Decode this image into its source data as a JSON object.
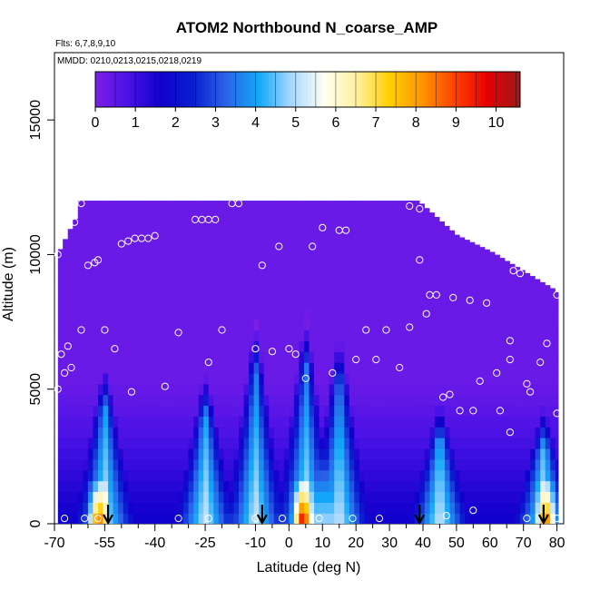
{
  "chart_data": {
    "type": "heatmap",
    "title": "ATOM2 Northbound N_coarse_AMP",
    "subtitle_flights": "Flts: 6,7,8,9,10",
    "subtitle_dates": "MMDD: 0210,0213,0215,0218,0219",
    "xlabel": "Latitude (deg N)",
    "ylabel": "Altitude (m)",
    "xlim": [
      -70,
      82
    ],
    "ylim": [
      0,
      17500
    ],
    "x_ticks": [
      -70,
      -55,
      -40,
      -25,
      -10,
      0,
      10,
      20,
      30,
      40,
      50,
      60,
      70,
      80
    ],
    "x_tick_labels": [
      "-70",
      "-55",
      "-40",
      "-25",
      "-10",
      "0",
      "10",
      "20",
      "30",
      "40",
      "50",
      "60",
      "70",
      "80"
    ],
    "x_minor_ticks": [
      -65,
      -60,
      -50,
      -45,
      -35,
      -30,
      -20,
      -15,
      -5,
      5,
      15,
      25,
      35,
      45,
      55,
      65,
      75
    ],
    "y_ticks": [
      0,
      5000,
      10000,
      15000
    ],
    "y_tick_labels": [
      "0",
      "5000",
      "10000",
      "15000"
    ],
    "colorbar": {
      "min": 0,
      "max": 10.6,
      "ticks": [
        0,
        1,
        2,
        3,
        4,
        5,
        6,
        7,
        8,
        9,
        10
      ],
      "tick_labels": [
        "0",
        "1",
        "2",
        "3",
        "4",
        "5",
        "6",
        "7",
        "8",
        "9",
        "10"
      ],
      "colors": [
        "#7B1FE6",
        "#4A12E6",
        "#1200CC",
        "#0A1FD0",
        "#2A63E8",
        "#12A8F8",
        "#A8D8FF",
        "#FFFFF0",
        "#FFF0A0",
        "#FFD000",
        "#FF9500",
        "#FF4000",
        "#E60000",
        "#9B1A1A"
      ]
    },
    "vertical_profiles": [
      {
        "lat": -55,
        "ceiling": 5500
      },
      {
        "lat": -25,
        "ceiling": 5200
      },
      {
        "lat": -10,
        "ceiling": 6800
      },
      {
        "lat": 5,
        "ceiling": 7000
      },
      {
        "lat": 15,
        "ceiling": 6500
      },
      {
        "lat": 45,
        "ceiling": 4200
      },
      {
        "lat": 76,
        "ceiling": 4000
      }
    ],
    "hot_spots": [
      {
        "lat": -57,
        "peak": 8.0
      },
      {
        "lat": 4,
        "peak": 8.5
      },
      {
        "lat": 77,
        "peak": 7.0
      }
    ],
    "arrow_latitudes": [
      -54,
      -8,
      39,
      76
    ],
    "observation_points": [
      [
        -69,
        10000
      ],
      [
        -69,
        5000
      ],
      [
        -68,
        6300
      ],
      [
        -67,
        5600
      ],
      [
        -67,
        200
      ],
      [
        -66,
        6600
      ],
      [
        -65,
        5800
      ],
      [
        -64,
        11200
      ],
      [
        -62,
        11900
      ],
      [
        -62,
        7200
      ],
      [
        -60,
        9600
      ],
      [
        -58,
        9700
      ],
      [
        -57,
        9800
      ],
      [
        -57,
        200
      ],
      [
        -55,
        7200
      ],
      [
        -52,
        6500
      ],
      [
        -50,
        10400
      ],
      [
        -48,
        10500
      ],
      [
        -47,
        4900
      ],
      [
        -46,
        10600
      ],
      [
        -44,
        10600
      ],
      [
        -42,
        10600
      ],
      [
        -40,
        10700
      ],
      [
        -37,
        5100
      ],
      [
        -33,
        7100
      ],
      [
        -28,
        11300
      ],
      [
        -26,
        11300
      ],
      [
        -24,
        6000
      ],
      [
        -24,
        11300
      ],
      [
        -22,
        11300
      ],
      [
        -20,
        7200
      ],
      [
        -17,
        11900
      ],
      [
        -15,
        11900
      ],
      [
        -10,
        6500
      ],
      [
        -8,
        9600
      ],
      [
        -5,
        6400
      ],
      [
        -3,
        10300
      ],
      [
        0,
        6500
      ],
      [
        2,
        6300
      ],
      [
        5,
        5400
      ],
      [
        7,
        10300
      ],
      [
        10,
        11000
      ],
      [
        13,
        5600
      ],
      [
        15,
        10900
      ],
      [
        17,
        10900
      ],
      [
        20,
        6100
      ],
      [
        23,
        7200
      ],
      [
        26,
        6100
      ],
      [
        29,
        7200
      ],
      [
        33,
        5800
      ],
      [
        36,
        7300
      ],
      [
        36,
        11800
      ],
      [
        39,
        9800
      ],
      [
        39,
        11700
      ],
      [
        41,
        7800
      ],
      [
        42,
        8500
      ],
      [
        44,
        8500
      ],
      [
        46,
        4700
      ],
      [
        48,
        4800
      ],
      [
        49,
        8400
      ],
      [
        51,
        4200
      ],
      [
        54,
        8300
      ],
      [
        55,
        4200
      ],
      [
        57,
        5300
      ],
      [
        59,
        8200
      ],
      [
        62,
        5600
      ],
      [
        63,
        4200
      ],
      [
        66,
        3400
      ],
      [
        66,
        6800
      ],
      [
        66,
        6100
      ],
      [
        67,
        9400
      ],
      [
        69,
        9300
      ],
      [
        71,
        5200
      ],
      [
        72,
        4900
      ],
      [
        75,
        6000
      ],
      [
        77,
        6700
      ],
      [
        79,
        9300
      ],
      [
        80,
        8500
      ],
      [
        80,
        4100
      ],
      [
        -61,
        200
      ],
      [
        -33,
        200
      ],
      [
        -24,
        200
      ],
      [
        -10,
        200
      ],
      [
        -2,
        200
      ],
      [
        9,
        200
      ],
      [
        19,
        200
      ],
      [
        27,
        200
      ],
      [
        47,
        300
      ],
      [
        55,
        500
      ],
      [
        71,
        200
      ],
      [
        80,
        200
      ]
    ]
  }
}
